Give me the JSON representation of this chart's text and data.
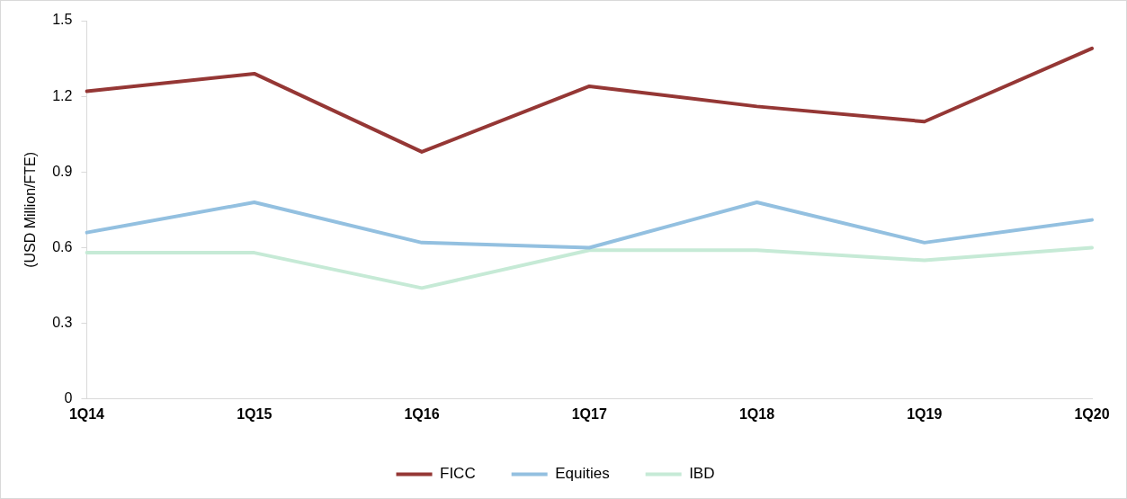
{
  "chart_data": {
    "type": "line",
    "ylabel": "(USD Million/FTE)",
    "categories": [
      "1Q14",
      "1Q15",
      "1Q16",
      "1Q17",
      "1Q18",
      "1Q19",
      "1Q20"
    ],
    "series": [
      {
        "name": "FICC",
        "color": "#953735",
        "values": [
          1.22,
          1.29,
          0.98,
          1.24,
          1.16,
          1.1,
          1.39
        ]
      },
      {
        "name": "Equities",
        "color": "#93c0e0",
        "values": [
          0.66,
          0.78,
          0.62,
          0.6,
          0.78,
          0.62,
          0.71
        ]
      },
      {
        "name": "IBD",
        "color": "#c6ead6",
        "values": [
          0.58,
          0.58,
          0.44,
          0.59,
          0.59,
          0.55,
          0.6
        ]
      }
    ],
    "ylim": [
      0,
      1.5
    ],
    "yticks": [
      0,
      0.3,
      0.6,
      0.9,
      1.2,
      1.5
    ],
    "grid": false,
    "legend": "bottom",
    "marker": "none",
    "line_style": "solid"
  }
}
